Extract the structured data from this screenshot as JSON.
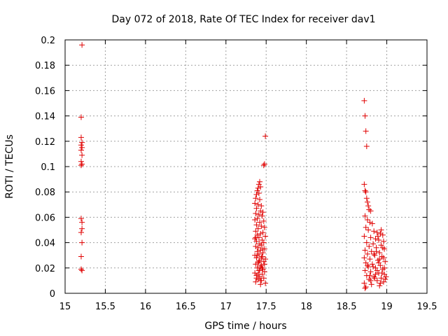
{
  "chart_data": {
    "type": "scatter",
    "title": "Day 072 of 2018, Rate Of TEC Index for receiver dav1",
    "xlabel": "GPS time / hours",
    "ylabel": "ROTI / TECUs",
    "xlim": [
      15,
      19.5
    ],
    "ylim": [
      0,
      0.2
    ],
    "grid": true,
    "marker": "+",
    "color": "#e00000",
    "x_ticks": [
      "15",
      "15.5",
      "16",
      "16.5",
      "17",
      "17.5",
      "18",
      "18.5",
      "19",
      "19.5"
    ],
    "y_ticks": [
      "0",
      "0.02",
      "0.04",
      "0.06",
      "0.08",
      "0.1",
      "0.12",
      "0.14",
      "0.16",
      "0.18",
      "0.2"
    ],
    "series": [
      {
        "name": "roti",
        "points": [
          [
            15.21,
            0.196
          ],
          [
            15.2,
            0.139
          ],
          [
            15.2,
            0.123
          ],
          [
            15.21,
            0.119
          ],
          [
            15.2,
            0.117
          ],
          [
            15.21,
            0.115
          ],
          [
            15.2,
            0.113
          ],
          [
            15.21,
            0.109
          ],
          [
            15.2,
            0.104
          ],
          [
            15.21,
            0.102
          ],
          [
            15.2,
            0.101
          ],
          [
            15.2,
            0.059
          ],
          [
            15.21,
            0.056
          ],
          [
            15.21,
            0.051
          ],
          [
            15.2,
            0.048
          ],
          [
            15.21,
            0.04
          ],
          [
            15.2,
            0.029
          ],
          [
            15.2,
            0.019
          ],
          [
            15.21,
            0.018
          ],
          [
            17.49,
            0.124
          ],
          [
            17.48,
            0.102
          ],
          [
            17.47,
            0.101
          ],
          [
            17.42,
            0.088
          ],
          [
            17.41,
            0.086
          ],
          [
            17.4,
            0.083
          ],
          [
            17.43,
            0.084
          ],
          [
            17.39,
            0.081
          ],
          [
            17.38,
            0.078
          ],
          [
            17.41,
            0.079
          ],
          [
            17.37,
            0.075
          ],
          [
            17.42,
            0.074
          ],
          [
            17.36,
            0.071
          ],
          [
            17.4,
            0.07
          ],
          [
            17.44,
            0.069
          ],
          [
            17.38,
            0.067
          ],
          [
            17.43,
            0.065
          ],
          [
            17.46,
            0.064
          ],
          [
            17.37,
            0.063
          ],
          [
            17.41,
            0.062
          ],
          [
            17.45,
            0.061
          ],
          [
            17.39,
            0.059
          ],
          [
            17.36,
            0.058
          ],
          [
            17.47,
            0.057
          ],
          [
            17.42,
            0.056
          ],
          [
            17.38,
            0.054
          ],
          [
            17.44,
            0.053
          ],
          [
            17.48,
            0.052
          ],
          [
            17.4,
            0.051
          ],
          [
            17.37,
            0.049
          ],
          [
            17.46,
            0.048
          ],
          [
            17.43,
            0.047
          ],
          [
            17.39,
            0.046
          ],
          [
            17.49,
            0.045
          ],
          [
            17.41,
            0.044
          ],
          [
            17.36,
            0.043
          ],
          [
            17.45,
            0.042
          ],
          [
            17.38,
            0.041
          ],
          [
            17.47,
            0.04
          ],
          [
            17.42,
            0.039
          ],
          [
            17.44,
            0.038
          ],
          [
            17.37,
            0.037
          ],
          [
            17.4,
            0.036
          ],
          [
            17.48,
            0.035
          ],
          [
            17.43,
            0.034
          ],
          [
            17.39,
            0.033
          ],
          [
            17.46,
            0.032
          ],
          [
            17.41,
            0.031
          ],
          [
            17.36,
            0.03
          ],
          [
            17.45,
            0.029
          ],
          [
            17.38,
            0.028
          ],
          [
            17.49,
            0.027
          ],
          [
            17.42,
            0.026
          ],
          [
            17.47,
            0.025
          ],
          [
            17.4,
            0.024
          ],
          [
            17.37,
            0.023
          ],
          [
            17.44,
            0.022
          ],
          [
            17.43,
            0.021
          ],
          [
            17.39,
            0.02
          ],
          [
            17.46,
            0.019
          ],
          [
            17.41,
            0.018
          ],
          [
            17.48,
            0.017
          ],
          [
            17.36,
            0.016
          ],
          [
            17.45,
            0.015
          ],
          [
            17.38,
            0.014
          ],
          [
            17.42,
            0.013
          ],
          [
            17.47,
            0.012
          ],
          [
            17.4,
            0.011
          ],
          [
            17.44,
            0.01
          ],
          [
            17.37,
            0.009
          ],
          [
            17.49,
            0.008
          ],
          [
            17.43,
            0.007
          ],
          [
            17.39,
            0.03
          ],
          [
            17.41,
            0.025
          ],
          [
            17.44,
            0.028
          ],
          [
            17.46,
            0.035
          ],
          [
            17.38,
            0.012
          ],
          [
            17.42,
            0.018
          ],
          [
            17.37,
            0.044
          ],
          [
            17.45,
            0.02
          ],
          [
            17.48,
            0.023
          ],
          [
            17.4,
            0.015
          ],
          [
            17.43,
            0.01
          ],
          [
            18.72,
            0.152
          ],
          [
            18.73,
            0.14
          ],
          [
            18.74,
            0.128
          ],
          [
            18.75,
            0.116
          ],
          [
            18.72,
            0.086
          ],
          [
            18.73,
            0.081
          ],
          [
            18.74,
            0.08
          ],
          [
            18.75,
            0.075
          ],
          [
            18.76,
            0.072
          ],
          [
            18.77,
            0.069
          ],
          [
            18.78,
            0.066
          ],
          [
            18.8,
            0.065
          ],
          [
            18.73,
            0.061
          ],
          [
            18.76,
            0.058
          ],
          [
            18.79,
            0.056
          ],
          [
            18.82,
            0.055
          ],
          [
            18.74,
            0.052
          ],
          [
            18.77,
            0.05
          ],
          [
            18.84,
            0.049
          ],
          [
            18.88,
            0.048
          ],
          [
            18.92,
            0.047
          ],
          [
            18.95,
            0.046
          ],
          [
            18.72,
            0.045
          ],
          [
            18.8,
            0.044
          ],
          [
            18.86,
            0.043
          ],
          [
            18.9,
            0.042
          ],
          [
            18.96,
            0.041
          ],
          [
            18.75,
            0.04
          ],
          [
            18.83,
            0.039
          ],
          [
            18.93,
            0.038
          ],
          [
            18.78,
            0.037
          ],
          [
            18.87,
            0.036
          ],
          [
            18.97,
            0.035
          ],
          [
            18.73,
            0.034
          ],
          [
            18.81,
            0.033
          ],
          [
            18.91,
            0.032
          ],
          [
            18.76,
            0.031
          ],
          [
            18.85,
            0.03
          ],
          [
            18.94,
            0.029
          ],
          [
            18.72,
            0.028
          ],
          [
            18.79,
            0.027
          ],
          [
            18.89,
            0.026
          ],
          [
            18.98,
            0.025
          ],
          [
            18.74,
            0.024
          ],
          [
            18.82,
            0.023
          ],
          [
            18.92,
            0.022
          ],
          [
            18.77,
            0.021
          ],
          [
            18.86,
            0.02
          ],
          [
            18.95,
            0.019
          ],
          [
            18.73,
            0.018
          ],
          [
            18.8,
            0.017
          ],
          [
            18.9,
            0.016
          ],
          [
            18.97,
            0.015
          ],
          [
            18.75,
            0.014
          ],
          [
            18.84,
            0.013
          ],
          [
            18.93,
            0.012
          ],
          [
            18.78,
            0.011
          ],
          [
            18.88,
            0.01
          ],
          [
            18.96,
            0.009
          ],
          [
            18.72,
            0.008
          ],
          [
            18.81,
            0.007
          ],
          [
            18.91,
            0.006
          ],
          [
            18.74,
            0.005
          ],
          [
            18.73,
            0.004
          ],
          [
            18.85,
            0.012
          ],
          [
            18.94,
            0.016
          ],
          [
            18.99,
            0.013
          ],
          [
            18.83,
            0.021
          ],
          [
            18.87,
            0.033
          ],
          [
            18.9,
            0.024
          ],
          [
            18.95,
            0.036
          ],
          [
            18.8,
            0.01
          ],
          [
            18.92,
            0.008
          ],
          [
            18.98,
            0.011
          ],
          [
            18.76,
            0.022
          ],
          [
            18.86,
            0.015
          ],
          [
            18.89,
            0.045
          ],
          [
            18.93,
            0.05
          ],
          [
            18.96,
            0.028
          ],
          [
            18.79,
            0.014
          ],
          [
            18.84,
            0.031
          ],
          [
            18.97,
            0.02
          ],
          [
            18.88,
            0.018
          ],
          [
            18.91,
            0.027
          ]
        ]
      }
    ]
  }
}
